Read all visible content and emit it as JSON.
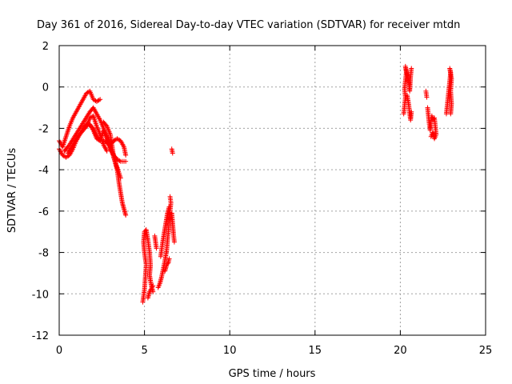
{
  "chart_data": {
    "type": "scatter",
    "title": "Day 361 of 2016, Sidereal Day-to-day VTEC variation (SDTVAR) for receiver mtdn",
    "xlabel": "GPS time / hours",
    "ylabel": "SDTVAR / TECUs",
    "xlim": [
      0,
      25
    ],
    "ylim": [
      -12,
      2
    ],
    "xticks": [
      "0",
      "5",
      "10",
      "15",
      "20",
      "25"
    ],
    "yticks": [
      "-12",
      "-10",
      "-8",
      "-6",
      "-4",
      "-2",
      "0",
      "2"
    ],
    "grid": true,
    "marker": "plus",
    "color": "#ff0000",
    "series": [
      {
        "segments": [
          [
            [
              0.0,
              -2.6
            ],
            [
              0.2,
              -2.9
            ],
            [
              0.4,
              -2.4
            ],
            [
              0.6,
              -1.9
            ],
            [
              0.8,
              -1.5
            ],
            [
              1.0,
              -1.2
            ],
            [
              1.2,
              -0.9
            ],
            [
              1.4,
              -0.6
            ],
            [
              1.6,
              -0.3
            ],
            [
              1.8,
              -0.2
            ],
            [
              2.0,
              -0.6
            ],
            [
              2.2,
              -0.7
            ],
            [
              2.4,
              -0.6
            ]
          ],
          [
            [
              0.0,
              -3.0
            ],
            [
              0.2,
              -3.3
            ],
            [
              0.4,
              -3.4
            ],
            [
              0.6,
              -3.3
            ],
            [
              0.8,
              -3.0
            ],
            [
              1.0,
              -2.6
            ],
            [
              1.2,
              -2.3
            ],
            [
              1.4,
              -2.0
            ],
            [
              1.6,
              -1.8
            ],
            [
              1.8,
              -1.8
            ],
            [
              2.0,
              -2.1
            ],
            [
              2.2,
              -2.5
            ],
            [
              2.4,
              -2.6
            ],
            [
              2.6,
              -2.6
            ],
            [
              2.8,
              -2.7
            ],
            [
              3.0,
              -2.8
            ],
            [
              3.2,
              -2.6
            ],
            [
              3.4,
              -2.5
            ],
            [
              3.6,
              -2.6
            ],
            [
              3.8,
              -2.9
            ],
            [
              3.9,
              -3.3
            ]
          ],
          [
            [
              0.3,
              -3.1
            ],
            [
              0.6,
              -2.8
            ],
            [
              0.9,
              -2.4
            ],
            [
              1.2,
              -2.0
            ],
            [
              1.5,
              -1.6
            ],
            [
              1.8,
              -1.2
            ],
            [
              2.0,
              -1.0
            ],
            [
              2.2,
              -1.3
            ],
            [
              2.4,
              -1.6
            ],
            [
              2.6,
              -2.0
            ],
            [
              2.8,
              -2.4
            ],
            [
              3.0,
              -2.9
            ],
            [
              3.2,
              -3.4
            ],
            [
              3.4,
              -4.0
            ],
            [
              3.5,
              -4.6
            ],
            [
              3.6,
              -5.1
            ],
            [
              3.7,
              -5.6
            ],
            [
              3.8,
              -5.9
            ],
            [
              3.9,
              -6.2
            ]
          ],
          [
            [
              0.5,
              -3.2
            ],
            [
              0.8,
              -2.8
            ],
            [
              1.1,
              -2.4
            ],
            [
              1.4,
              -2.1
            ],
            [
              1.7,
              -1.8
            ],
            [
              2.0,
              -2.0
            ],
            [
              2.2,
              -2.4
            ],
            [
              2.4,
              -2.6
            ],
            [
              2.6,
              -2.1
            ],
            [
              2.8,
              -2.5
            ],
            [
              3.0,
              -3.0
            ],
            [
              3.2,
              -3.3
            ],
            [
              3.4,
              -3.5
            ],
            [
              3.6,
              -3.6
            ],
            [
              3.8,
              -3.6
            ],
            [
              3.9,
              -3.6
            ]
          ],
          [
            [
              1.6,
              -1.9
            ],
            [
              1.8,
              -1.5
            ],
            [
              2.0,
              -1.4
            ],
            [
              2.2,
              -1.9
            ],
            [
              2.4,
              -2.3
            ],
            [
              2.6,
              -2.8
            ],
            [
              2.8,
              -3.1
            ]
          ],
          [
            [
              2.6,
              -1.7
            ],
            [
              2.8,
              -1.9
            ],
            [
              3.0,
              -2.3
            ],
            [
              3.2,
              -3.4
            ],
            [
              3.4,
              -3.9
            ],
            [
              3.6,
              -4.4
            ]
          ]
        ]
      },
      {
        "segments": [
          [
            [
              4.9,
              -10.4
            ],
            [
              5.0,
              -9.8
            ],
            [
              5.05,
              -9.2
            ],
            [
              5.1,
              -8.6
            ],
            [
              5.0,
              -8.0
            ],
            [
              4.95,
              -7.5
            ],
            [
              5.0,
              -7.0
            ],
            [
              5.1,
              -6.9
            ],
            [
              5.2,
              -7.4
            ],
            [
              5.3,
              -8.0
            ],
            [
              5.35,
              -8.6
            ],
            [
              5.3,
              -9.1
            ],
            [
              5.4,
              -9.6
            ],
            [
              5.5,
              -9.9
            ]
          ],
          [
            [
              5.2,
              -10.2
            ],
            [
              5.3,
              -9.9
            ],
            [
              5.5,
              -9.6
            ]
          ],
          [
            [
              5.6,
              -7.2
            ],
            [
              5.7,
              -7.8
            ]
          ],
          [
            [
              5.8,
              -9.7
            ],
            [
              5.9,
              -9.5
            ],
            [
              6.0,
              -9.2
            ],
            [
              6.1,
              -8.8
            ],
            [
              6.2,
              -8.4
            ],
            [
              6.3,
              -7.9
            ],
            [
              6.35,
              -7.4
            ],
            [
              6.4,
              -7.0
            ],
            [
              6.45,
              -6.5
            ],
            [
              6.5,
              -6.0
            ],
            [
              6.55,
              -5.6
            ],
            [
              6.5,
              -5.3
            ]
          ],
          [
            [
              5.95,
              -8.2
            ],
            [
              6.05,
              -7.6
            ],
            [
              6.15,
              -7.1
            ],
            [
              6.25,
              -6.6
            ],
            [
              6.35,
              -6.1
            ],
            [
              6.45,
              -5.8
            ]
          ],
          [
            [
              6.2,
              -8.9
            ],
            [
              6.3,
              -8.6
            ],
            [
              6.4,
              -8.5
            ],
            [
              6.45,
              -8.3
            ]
          ],
          [
            [
              6.6,
              -6.1
            ],
            [
              6.65,
              -6.6
            ],
            [
              6.7,
              -7.1
            ],
            [
              6.75,
              -7.5
            ]
          ],
          [
            [
              6.6,
              -3.0
            ],
            [
              6.65,
              -3.2
            ]
          ]
        ]
      },
      {
        "segments": [
          [
            [
              20.2,
              -1.3
            ],
            [
              20.25,
              -0.9
            ],
            [
              20.3,
              -0.5
            ],
            [
              20.25,
              -0.1
            ],
            [
              20.3,
              0.3
            ],
            [
              20.35,
              0.7
            ],
            [
              20.3,
              1.0
            ],
            [
              20.4,
              0.6
            ],
            [
              20.5,
              0.2
            ],
            [
              20.55,
              -0.2
            ],
            [
              20.6,
              0.5
            ],
            [
              20.65,
              0.9
            ]
          ],
          [
            [
              20.4,
              -0.4
            ],
            [
              20.5,
              -0.9
            ],
            [
              20.55,
              -1.3
            ],
            [
              20.6,
              -1.6
            ],
            [
              20.65,
              -1.2
            ]
          ],
          [
            [
              21.5,
              -0.2
            ],
            [
              21.55,
              -0.5
            ]
          ],
          [
            [
              21.6,
              -1.0
            ],
            [
              21.65,
              -1.4
            ],
            [
              21.7,
              -1.8
            ],
            [
              21.75,
              -2.1
            ],
            [
              21.8,
              -1.7
            ],
            [
              21.85,
              -1.4
            ],
            [
              21.9,
              -1.6
            ],
            [
              22.0,
              -1.5
            ],
            [
              22.05,
              -1.9
            ],
            [
              22.1,
              -2.3
            ],
            [
              22.0,
              -2.5
            ],
            [
              21.9,
              -2.2
            ],
            [
              21.8,
              -2.4
            ]
          ],
          [
            [
              22.7,
              -1.3
            ],
            [
              22.75,
              -0.9
            ],
            [
              22.8,
              -0.5
            ],
            [
              22.85,
              -0.1
            ],
            [
              22.9,
              0.3
            ],
            [
              22.95,
              0.7
            ],
            [
              22.9,
              0.9
            ],
            [
              23.0,
              0.4
            ],
            [
              22.95,
              -0.2
            ],
            [
              23.0,
              -0.8
            ],
            [
              22.95,
              -1.3
            ]
          ]
        ]
      }
    ]
  }
}
